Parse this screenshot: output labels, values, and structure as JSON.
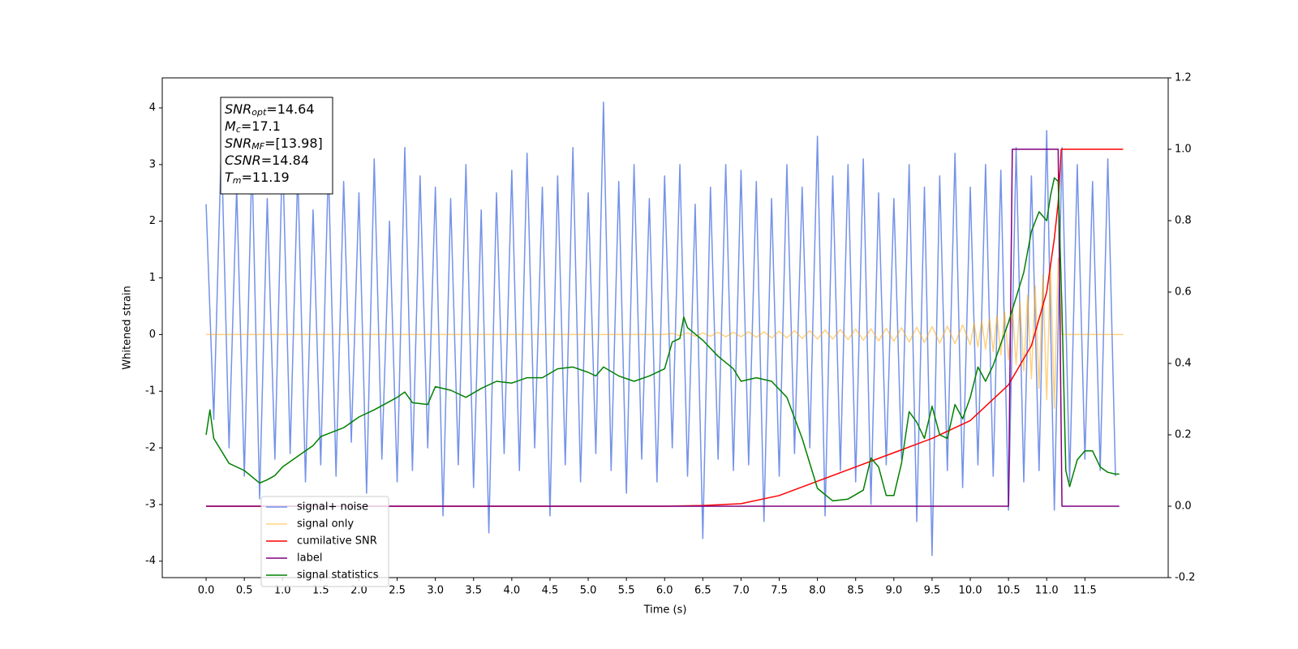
{
  "chart_data": {
    "type": "line",
    "xlabel": "Time (s)",
    "ylabel": "Whitened strain",
    "xlim": [
      -0.574,
      12.59
    ],
    "xticks": [
      {
        "value": 0,
        "label": "0.0"
      },
      0.5,
      {
        "value": 1,
        "label": "1.0"
      },
      1.5,
      {
        "value": 2,
        "label": "2.0"
      },
      2.5,
      {
        "value": 3,
        "label": "3.0"
      },
      3.5,
      {
        "value": 4,
        "label": "4.0"
      },
      4.5,
      {
        "value": 5,
        "label": "5.0"
      },
      5.5,
      {
        "value": 6,
        "label": "6.0"
      },
      6.5,
      {
        "value": 7,
        "label": "7.0"
      },
      7.5,
      {
        "value": 8,
        "label": "8.0"
      },
      8.5,
      {
        "value": 9,
        "label": "9.0"
      },
      9.5,
      {
        "value": 10,
        "label": "10.0"
      },
      10.5,
      {
        "value": 11,
        "label": "11.0"
      },
      11.5
    ],
    "ylim": [
      -4.29,
      4.53
    ],
    "yticks": [
      -4,
      -3,
      -2,
      -1,
      0,
      1,
      2,
      3,
      4
    ],
    "y2lim": [
      -0.2,
      1.2
    ],
    "y2ticks": [
      -0.2,
      {
        "value": 0,
        "label": "0.0"
      },
      0.2,
      0.4,
      0.6,
      0.8,
      {
        "value": 1,
        "label": "1.0"
      },
      1.2
    ],
    "legend": "lower left",
    "annotations": [
      {
        "symbol": "SNR",
        "subscript": "opt",
        "text": "=14.64"
      },
      {
        "symbol": "M",
        "subscript": "c",
        "text": "=17.1"
      },
      {
        "symbol": "SNR",
        "subscript": "MF",
        "text": "=[13.98]"
      },
      {
        "symbol": "CSNR",
        "text": "=14.84"
      },
      {
        "symbol": "T",
        "subscript": "m",
        "text": "=11.19"
      }
    ],
    "series": [
      {
        "name": "signal+ noise",
        "color": "#7492e8",
        "alpha": 1,
        "x": [
          0,
          0.1,
          0.2,
          0.3,
          0.4,
          0.5,
          0.6,
          0.7,
          0.8,
          0.9,
          1,
          1.1,
          1.2,
          1.3,
          1.4,
          1.5,
          1.6,
          1.7,
          1.8,
          1.9,
          2,
          2.1,
          2.2,
          2.3,
          2.4,
          2.5,
          2.6,
          2.7,
          2.8,
          2.9,
          3,
          3.1,
          3.2,
          3.3,
          3.4,
          3.5,
          3.6,
          3.7,
          3.8,
          3.9,
          4,
          4.1,
          4.2,
          4.3,
          4.4,
          4.5,
          4.6,
          4.7,
          4.8,
          4.9,
          5,
          5.1,
          5.2,
          5.3,
          5.4,
          5.5,
          5.6,
          5.7,
          5.8,
          5.9,
          6,
          6.1,
          6.2,
          6.3,
          6.4,
          6.5,
          6.6,
          6.7,
          6.8,
          6.9,
          7,
          7.1,
          7.2,
          7.3,
          7.4,
          7.5,
          7.6,
          7.7,
          7.8,
          7.9,
          8,
          8.1,
          8.2,
          8.3,
          8.4,
          8.5,
          8.6,
          8.7,
          8.8,
          8.9,
          9,
          9.1,
          9.2,
          9.3,
          9.4,
          9.5,
          9.6,
          9.7,
          9.8,
          9.9,
          10,
          10.1,
          10.2,
          10.3,
          10.4,
          10.5,
          10.6,
          10.7,
          10.8,
          10.9,
          11,
          11.1,
          11.2,
          11.3,
          11.4,
          11.5,
          11.6,
          11.7,
          11.8,
          11.9
        ],
        "values": [
          2.3,
          -1.5,
          3.4,
          -2.0,
          2.6,
          -2.5,
          3.1,
          -2.9,
          2.4,
          -2.2,
          3.3,
          -2.1,
          2.9,
          -2.6,
          2.2,
          -2.3,
          3.0,
          -2.5,
          2.7,
          -1.9,
          2.5,
          -2.8,
          3.1,
          -2.2,
          2.0,
          -2.6,
          3.3,
          -2.4,
          2.8,
          -2.0,
          2.6,
          -3.2,
          2.4,
          -2.3,
          3.0,
          -2.7,
          2.2,
          -3.5,
          2.5,
          -2.1,
          2.9,
          -2.4,
          3.2,
          -2.0,
          2.6,
          -3.2,
          2.8,
          -2.3,
          3.3,
          -2.6,
          2.5,
          -2.1,
          4.1,
          -2.4,
          2.7,
          -2.8,
          3.0,
          -2.2,
          2.4,
          -2.6,
          2.8,
          -2.0,
          3.0,
          -2.5,
          2.3,
          -3.6,
          2.6,
          -2.2,
          3.0,
          -2.4,
          2.9,
          -2.3,
          2.7,
          -3.3,
          2.4,
          -2.5,
          3.0,
          -2.1,
          2.6,
          -2.0,
          3.5,
          -3.2,
          2.8,
          -2.4,
          3.0,
          -2.6,
          3.1,
          -3.0,
          2.5,
          -2.3,
          2.4,
          -2.2,
          3.0,
          -3.3,
          2.6,
          -3.9,
          2.8,
          -2.4,
          3.2,
          -2.7,
          2.6,
          -2.3,
          3.0,
          -2.5,
          2.9,
          -3.1,
          3.3,
          -2.6,
          2.8,
          -2.4,
          3.6,
          -3.1,
          3.3,
          -2.6,
          3.0,
          -2.2,
          2.7,
          -2.4,
          3.1,
          -2.5
        ]
      },
      {
        "name": "signal only",
        "color": "#ffa500",
        "alpha": 0.5,
        "x": [
          0,
          6,
          6.1,
          6.2,
          6.3,
          6.4,
          6.5,
          6.6,
          6.7,
          6.8,
          6.9,
          7,
          7.1,
          7.2,
          7.3,
          7.4,
          7.5,
          7.6,
          7.7,
          7.8,
          7.9,
          8,
          8.1,
          8.2,
          8.3,
          8.4,
          8.5,
          8.6,
          8.7,
          8.8,
          8.9,
          9,
          9.1,
          9.2,
          9.3,
          9.4,
          9.5,
          9.6,
          9.7,
          9.8,
          9.9,
          10,
          10.05,
          10.1,
          10.15,
          10.2,
          10.25,
          10.3,
          10.35,
          10.4,
          10.45,
          10.5,
          10.55,
          10.6,
          10.65,
          10.7,
          10.75,
          10.8,
          10.85,
          10.9,
          10.95,
          11,
          11.05,
          11.1,
          11.15,
          11.2,
          12
        ],
        "values": [
          0,
          0,
          0.02,
          -0.02,
          0.03,
          -0.03,
          0.03,
          -0.03,
          0.04,
          -0.04,
          0.04,
          -0.04,
          0.05,
          -0.05,
          0.05,
          -0.06,
          0.06,
          -0.06,
          0.07,
          -0.07,
          0.07,
          -0.08,
          0.08,
          -0.08,
          0.09,
          -0.09,
          0.1,
          -0.1,
          0.1,
          -0.11,
          0.11,
          -0.12,
          0.12,
          -0.13,
          0.13,
          -0.14,
          0.14,
          -0.15,
          0.15,
          -0.16,
          0.17,
          -0.18,
          0.2,
          -0.22,
          0.24,
          -0.26,
          0.28,
          -0.3,
          0.33,
          -0.36,
          0.4,
          -0.44,
          0.48,
          -0.53,
          0.58,
          -0.64,
          0.7,
          -0.78,
          0.86,
          -0.95,
          1.05,
          -1.15,
          1.25,
          -1.3,
          1.35,
          0,
          0
        ]
      },
      {
        "name": "cumilative SNR",
        "color": "#ff0000",
        "axis": "y2",
        "x": [
          0,
          6,
          6.5,
          7,
          7.5,
          8,
          8.5,
          9,
          9.5,
          10,
          10.5,
          10.8,
          11,
          11.1,
          11.15,
          11.19,
          12
        ],
        "values": [
          0,
          0,
          0.002,
          0.007,
          0.03,
          0.07,
          0.11,
          0.15,
          0.19,
          0.24,
          0.34,
          0.45,
          0.6,
          0.75,
          0.85,
          1,
          1
        ]
      },
      {
        "name": "label",
        "color": "#800080",
        "axis": "y2",
        "x": [
          0,
          10.5,
          10.55,
          11.15,
          11.2,
          11.95
        ],
        "values": [
          0,
          0,
          1,
          1,
          0,
          0
        ]
      },
      {
        "name": "signal statistics",
        "color": "#008000",
        "axis": "y2",
        "x": [
          0,
          0.05,
          0.1,
          0.3,
          0.5,
          0.7,
          0.8,
          0.9,
          1,
          1.2,
          1.4,
          1.5,
          1.8,
          2,
          2.2,
          2.5,
          2.6,
          2.7,
          2.9,
          3,
          3.2,
          3.4,
          3.6,
          3.8,
          4,
          4.2,
          4.4,
          4.6,
          4.8,
          5,
          5.1,
          5.2,
          5.4,
          5.6,
          5.8,
          6,
          6.1,
          6.2,
          6.25,
          6.3,
          6.5,
          6.7,
          6.9,
          7,
          7.2,
          7.4,
          7.6,
          7.8,
          8,
          8.2,
          8.4,
          8.6,
          8.7,
          8.8,
          8.9,
          9,
          9.1,
          9.2,
          9.3,
          9.4,
          9.5,
          9.6,
          9.7,
          9.8,
          9.9,
          10,
          10.1,
          10.2,
          10.3,
          10.5,
          10.6,
          10.7,
          10.8,
          10.9,
          11,
          11.05,
          11.1,
          11.15,
          11.2,
          11.25,
          11.3,
          11.4,
          11.5,
          11.6,
          11.7,
          11.8,
          11.9,
          11.95
        ],
        "values": [
          0.2,
          0.27,
          0.19,
          0.12,
          0.1,
          0.065,
          0.074,
          0.086,
          0.11,
          0.14,
          0.17,
          0.195,
          0.22,
          0.25,
          0.27,
          0.305,
          0.32,
          0.29,
          0.285,
          0.335,
          0.325,
          0.305,
          0.33,
          0.35,
          0.345,
          0.36,
          0.36,
          0.385,
          0.39,
          0.375,
          0.365,
          0.39,
          0.365,
          0.35,
          0.365,
          0.385,
          0.46,
          0.47,
          0.53,
          0.5,
          0.465,
          0.42,
          0.385,
          0.35,
          0.36,
          0.35,
          0.305,
          0.19,
          0.05,
          0.015,
          0.02,
          0.045,
          0.135,
          0.11,
          0.03,
          0.03,
          0.12,
          0.265,
          0.235,
          0.19,
          0.28,
          0.2,
          0.19,
          0.285,
          0.245,
          0.305,
          0.39,
          0.35,
          0.395,
          0.515,
          0.585,
          0.655,
          0.77,
          0.825,
          0.8,
          0.87,
          0.92,
          0.91,
          0.55,
          0.1,
          0.055,
          0.13,
          0.155,
          0.155,
          0.11,
          0.095,
          0.09,
          0.09
        ]
      }
    ]
  }
}
